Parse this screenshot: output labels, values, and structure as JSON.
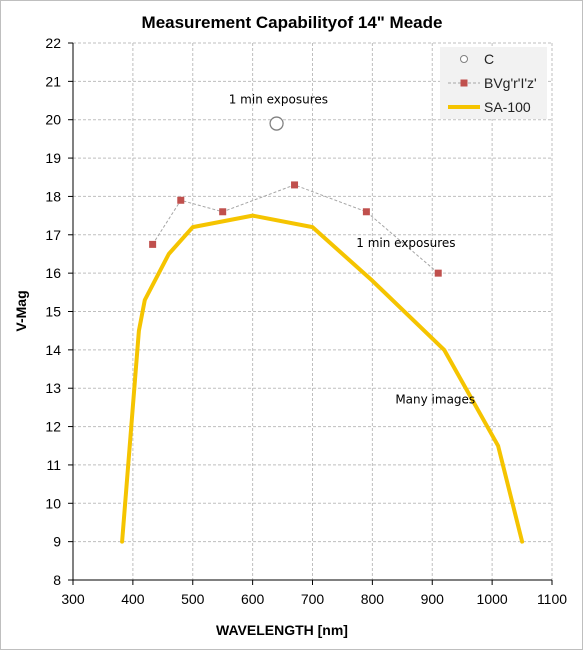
{
  "chart_data": {
    "type": "line",
    "title": "Measurement Capabilityof 14\" Meade",
    "xlabel": "WAVELENGTH [nm]",
    "ylabel": "V-Mag",
    "xlim": [
      300,
      1100
    ],
    "ylim": [
      8,
      22
    ],
    "xticks": [
      300,
      400,
      500,
      600,
      700,
      800,
      900,
      1000,
      1100
    ],
    "yticks": [
      8,
      9,
      10,
      11,
      12,
      13,
      14,
      15,
      16,
      17,
      18,
      19,
      20,
      21,
      22
    ],
    "grid": true,
    "legend_position": "top-right",
    "series": [
      {
        "name": "C",
        "style": "open-circle-marker",
        "color": "#808080",
        "points": [
          [
            640,
            19.9
          ]
        ]
      },
      {
        "name": "BVg'r'I'z'",
        "style": "square-marker-dashed-line",
        "color": "#c0504d",
        "line_color": "#a6a6a6",
        "points": [
          [
            433,
            16.75
          ],
          [
            480,
            17.9
          ],
          [
            550,
            17.6
          ],
          [
            670,
            18.3
          ],
          [
            790,
            17.6
          ],
          [
            910,
            16.0
          ]
        ]
      },
      {
        "name": "SA-100",
        "style": "thick-line",
        "color": "#f5c400",
        "points": [
          [
            382,
            9.0
          ],
          [
            410,
            14.5
          ],
          [
            420,
            15.3
          ],
          [
            460,
            16.5
          ],
          [
            500,
            17.2
          ],
          [
            600,
            17.5
          ],
          [
            700,
            17.2
          ],
          [
            800,
            15.8
          ],
          [
            920,
            14.0
          ],
          [
            1010,
            11.5
          ],
          [
            1050,
            9.0
          ]
        ]
      }
    ],
    "annotations": [
      {
        "text": "1 min exposures",
        "x": 643,
        "y": 20.42
      },
      {
        "text": "1 min exposures",
        "x": 856,
        "y": 16.68
      },
      {
        "text": "Many images",
        "x": 905,
        "y": 12.6
      }
    ]
  }
}
